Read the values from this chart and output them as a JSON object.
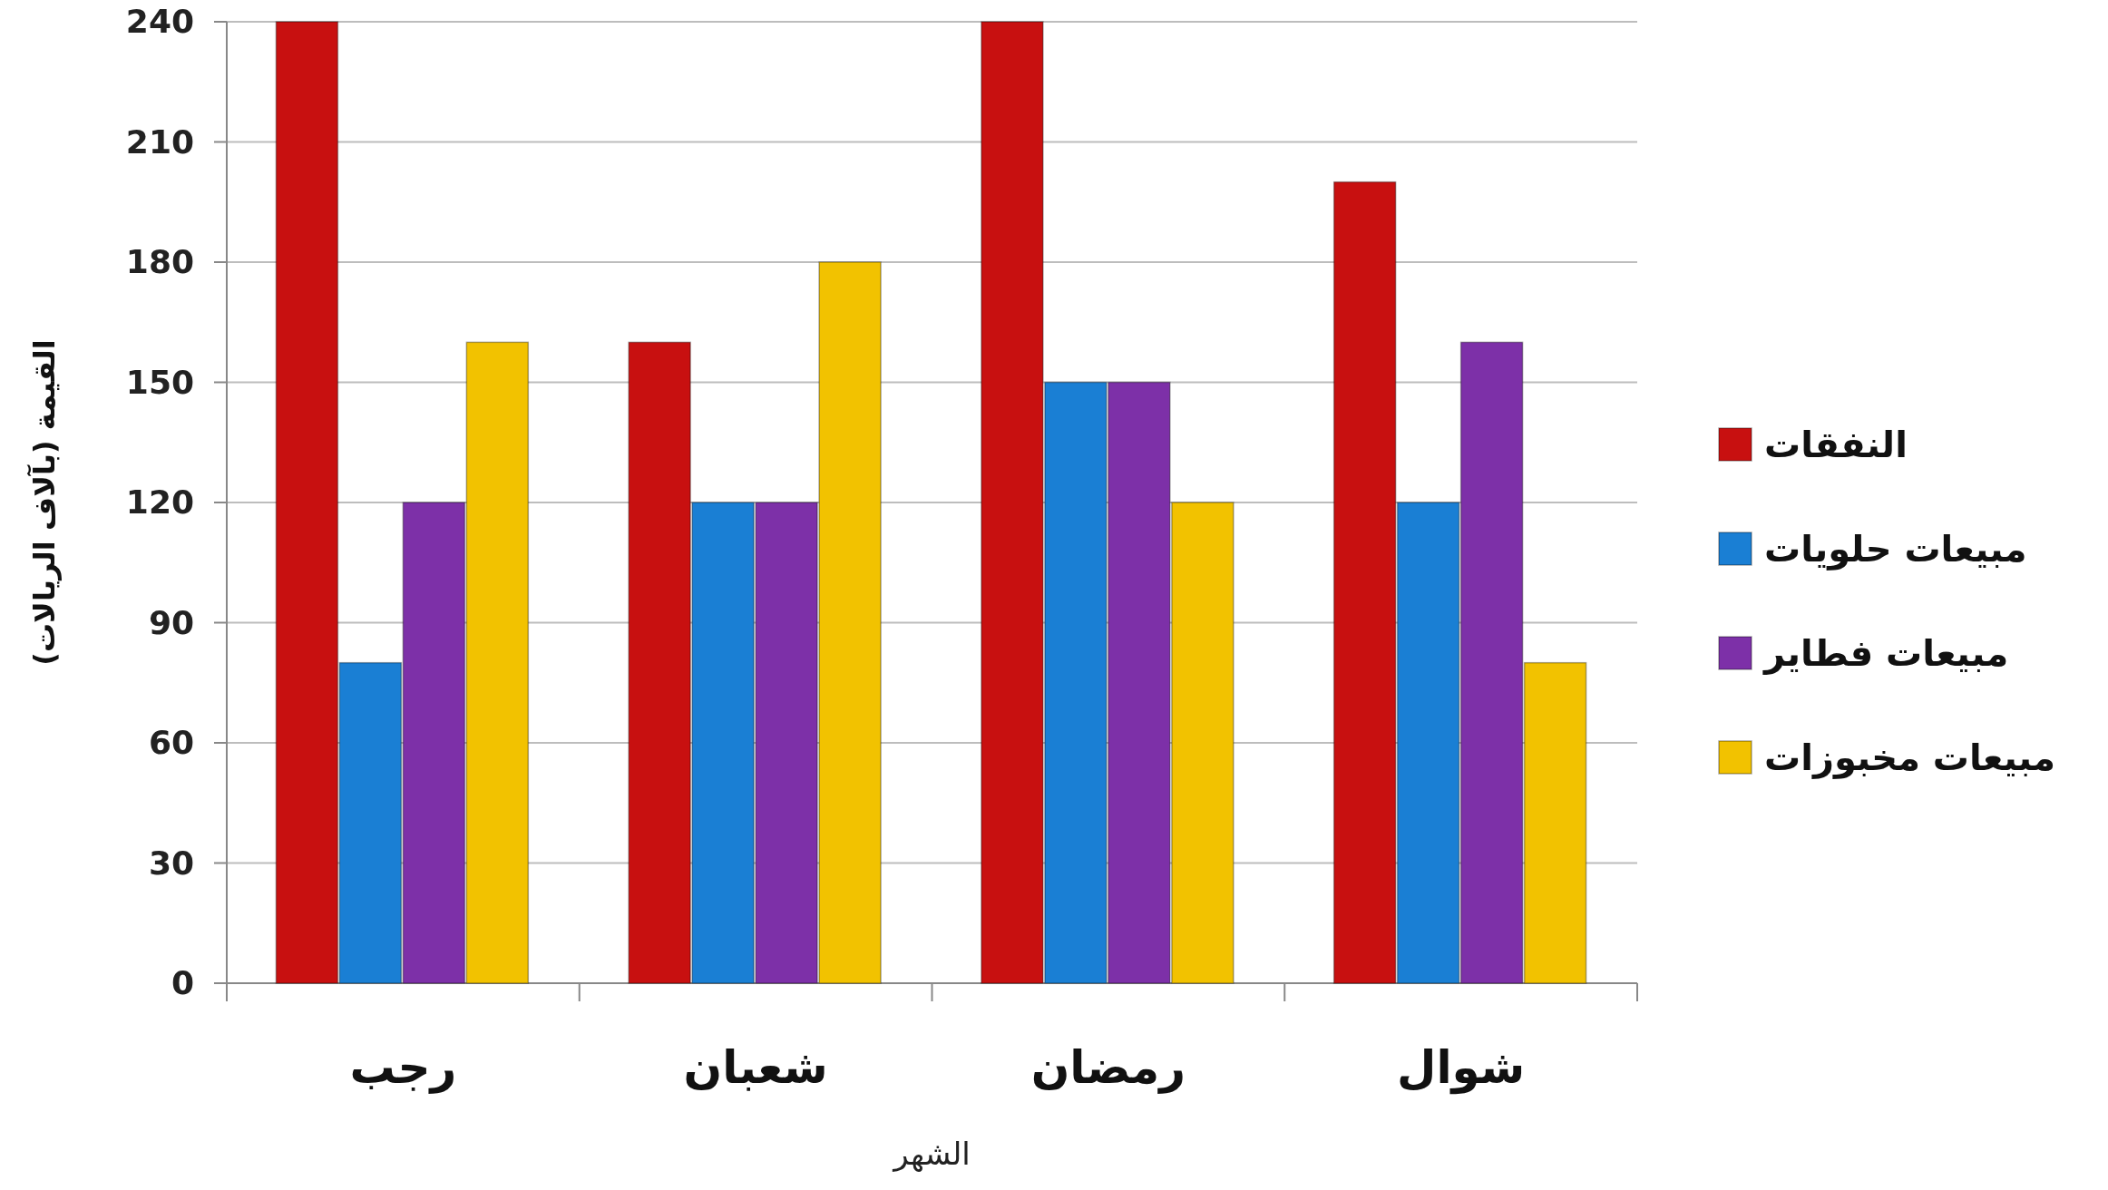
{
  "chart_data": {
    "type": "bar",
    "xlabel": "الشهر",
    "ylabel": "القيمة (بآلاف الريالات)",
    "categories": [
      "رجب",
      "شعبان",
      "رمضان",
      "شوال"
    ],
    "series": [
      {
        "name": "النفقات",
        "color": "#c81010",
        "values": [
          240,
          160,
          240,
          200
        ]
      },
      {
        "name": "مبيعات حلويات",
        "color": "#1a7fd4",
        "values": [
          80,
          120,
          150,
          120
        ]
      },
      {
        "name": "مبيعات فطاير",
        "color": "#7d30a8",
        "values": [
          120,
          120,
          150,
          160
        ]
      },
      {
        "name": "مبيعات مخبوزات",
        "color": "#f2c200",
        "values": [
          160,
          180,
          120,
          80
        ]
      }
    ],
    "ylim": [
      0,
      240
    ],
    "yticks": [
      0,
      30,
      60,
      90,
      120,
      150,
      180,
      210,
      240
    ],
    "grid": "y",
    "legend": "right"
  }
}
